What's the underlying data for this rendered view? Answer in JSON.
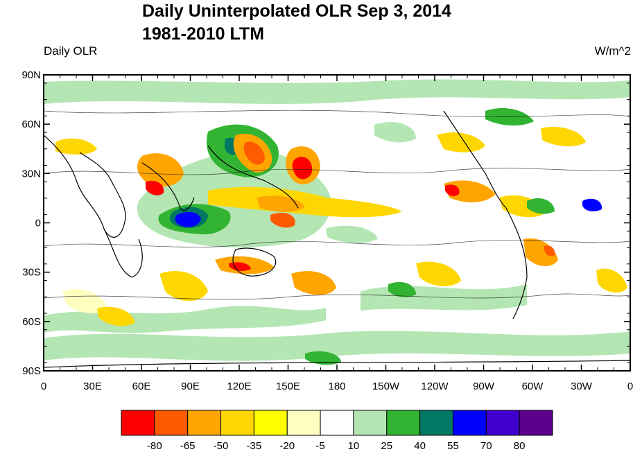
{
  "title_line1": "Daily Uninterpolated OLR Sep 3, 2014",
  "title_line2": "1981-2010 LTM",
  "left_label": "Daily OLR",
  "right_label": "W/m^2",
  "lat_labels": [
    "90N",
    "60N",
    "30N",
    "0",
    "30S",
    "60S",
    "90S"
  ],
  "lon_labels": [
    "0",
    "30E",
    "60E",
    "90E",
    "120E",
    "150E",
    "180",
    "150W",
    "120W",
    "90W",
    "60W",
    "30W",
    "0"
  ],
  "colorbar": {
    "colors": [
      "#ff0000",
      "#ff5a00",
      "#ffa500",
      "#ffd700",
      "#ffff00",
      "#ffffc0",
      "#ffffff",
      "#b4e6b4",
      "#32b432",
      "#007864",
      "#0000ff",
      "#4000d0",
      "#5a008c"
    ],
    "labels": [
      "-80",
      "-65",
      "-50",
      "-35",
      "-20",
      "-5",
      "10",
      "25",
      "40",
      "55",
      "70",
      "80"
    ]
  },
  "map_colors": {
    "land_outline": "#000000",
    "contour": "#1a1a1a"
  }
}
